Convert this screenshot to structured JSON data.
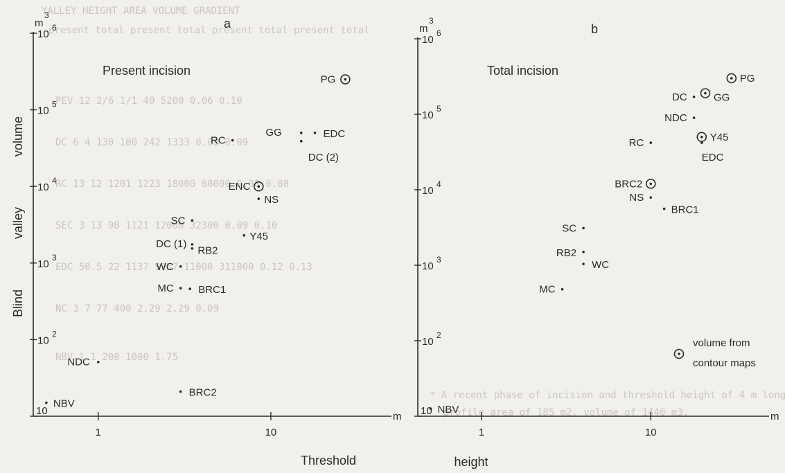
{
  "figure": {
    "ylabel_words": [
      "Blind",
      "valley",
      "volume"
    ],
    "xlabel_words": [
      "Threshold",
      "height"
    ],
    "legend_label_line1": "volume  from",
    "legend_label_line2": "contour maps"
  },
  "chart_data": [
    {
      "type": "scatter",
      "panel_letter": "a",
      "title": "Present   incision",
      "x_scale": "log",
      "y_scale": "log",
      "xlim": [
        0.42,
        50
      ],
      "ylim": [
        10,
        1000000
      ],
      "x_ticks": [
        1,
        10
      ],
      "y_ticks": [
        10,
        100,
        1000,
        10000,
        100000,
        1000000
      ],
      "x_unit": "m",
      "y_unit": "m",
      "y_unit_exp": "3",
      "points": [
        {
          "label": "PG",
          "x": 27,
          "y": 250000,
          "marker": "ring"
        },
        {
          "label": "GG",
          "x": 15,
          "y": 50000,
          "marker": "dot"
        },
        {
          "label": "EDC",
          "x": 18,
          "y": 50000,
          "marker": "dot"
        },
        {
          "label": "DC (2)",
          "x": 15,
          "y": 39000,
          "marker": "dot"
        },
        {
          "label": "RC",
          "x": 6,
          "y": 40000,
          "marker": "dot"
        },
        {
          "label": "ENC",
          "x": 8.5,
          "y": 10000,
          "marker": "ring"
        },
        {
          "label": "NS",
          "x": 8.5,
          "y": 6900,
          "marker": "dot"
        },
        {
          "label": "SC",
          "x": 3.5,
          "y": 3600,
          "marker": "dot"
        },
        {
          "label": "Y45",
          "x": 7,
          "y": 2300,
          "marker": "dot"
        },
        {
          "label": "DC (1)",
          "x": 3.5,
          "y": 1750,
          "marker": "dot"
        },
        {
          "label": "RB2",
          "x": 3.5,
          "y": 1550,
          "marker": "dot"
        },
        {
          "label": "WC",
          "x": 3,
          "y": 900,
          "marker": "dot"
        },
        {
          "label": "MC",
          "x": 3,
          "y": 470,
          "marker": "dot"
        },
        {
          "label": "BRC1",
          "x": 3.4,
          "y": 460,
          "marker": "dot"
        },
        {
          "label": "NDC",
          "x": 1,
          "y": 51,
          "marker": "dot"
        },
        {
          "label": "BRC2",
          "x": 3,
          "y": 21,
          "marker": "dot"
        },
        {
          "label": "NBV",
          "x": 0.5,
          "y": 15,
          "marker": "dot"
        }
      ]
    },
    {
      "type": "scatter",
      "panel_letter": "b",
      "title": "Total    incision",
      "x_scale": "log",
      "y_scale": "log",
      "xlim": [
        0.42,
        50
      ],
      "ylim": [
        10,
        1000000
      ],
      "x_ticks": [
        1,
        10
      ],
      "y_ticks": [
        10,
        100,
        1000,
        10000,
        100000,
        1000000
      ],
      "x_unit": "m",
      "y_unit": "m",
      "y_unit_exp": "3",
      "points": [
        {
          "label": "PG",
          "x": 30,
          "y": 300000,
          "marker": "ring"
        },
        {
          "label": "DC",
          "x": 18,
          "y": 170000,
          "marker": "dot"
        },
        {
          "label": "GG",
          "x": 21,
          "y": 190000,
          "marker": "ring"
        },
        {
          "label": "NDC",
          "x": 18,
          "y": 90000,
          "marker": "dot"
        },
        {
          "label": "Y45",
          "x": 20,
          "y": 50000,
          "marker": "ring"
        },
        {
          "label": "EDC",
          "x": 20,
          "y": 42000,
          "marker": "dot"
        },
        {
          "label": "RC",
          "x": 10,
          "y": 42000,
          "marker": "dot"
        },
        {
          "label": "BRC2",
          "x": 10,
          "y": 12000,
          "marker": "ring"
        },
        {
          "label": "NS",
          "x": 10,
          "y": 7900,
          "marker": "dot"
        },
        {
          "label": "BRC1",
          "x": 12,
          "y": 5600,
          "marker": "dot"
        },
        {
          "label": "SC",
          "x": 4,
          "y": 3100,
          "marker": "dot"
        },
        {
          "label": "RB2",
          "x": 4,
          "y": 1500,
          "marker": "dot"
        },
        {
          "label": "WC",
          "x": 4,
          "y": 1040,
          "marker": "dot"
        },
        {
          "label": "MC",
          "x": 3,
          "y": 480,
          "marker": "dot"
        },
        {
          "label": "NBV",
          "x": 0.5,
          "y": 12.6,
          "marker": "dot"
        }
      ]
    }
  ]
}
